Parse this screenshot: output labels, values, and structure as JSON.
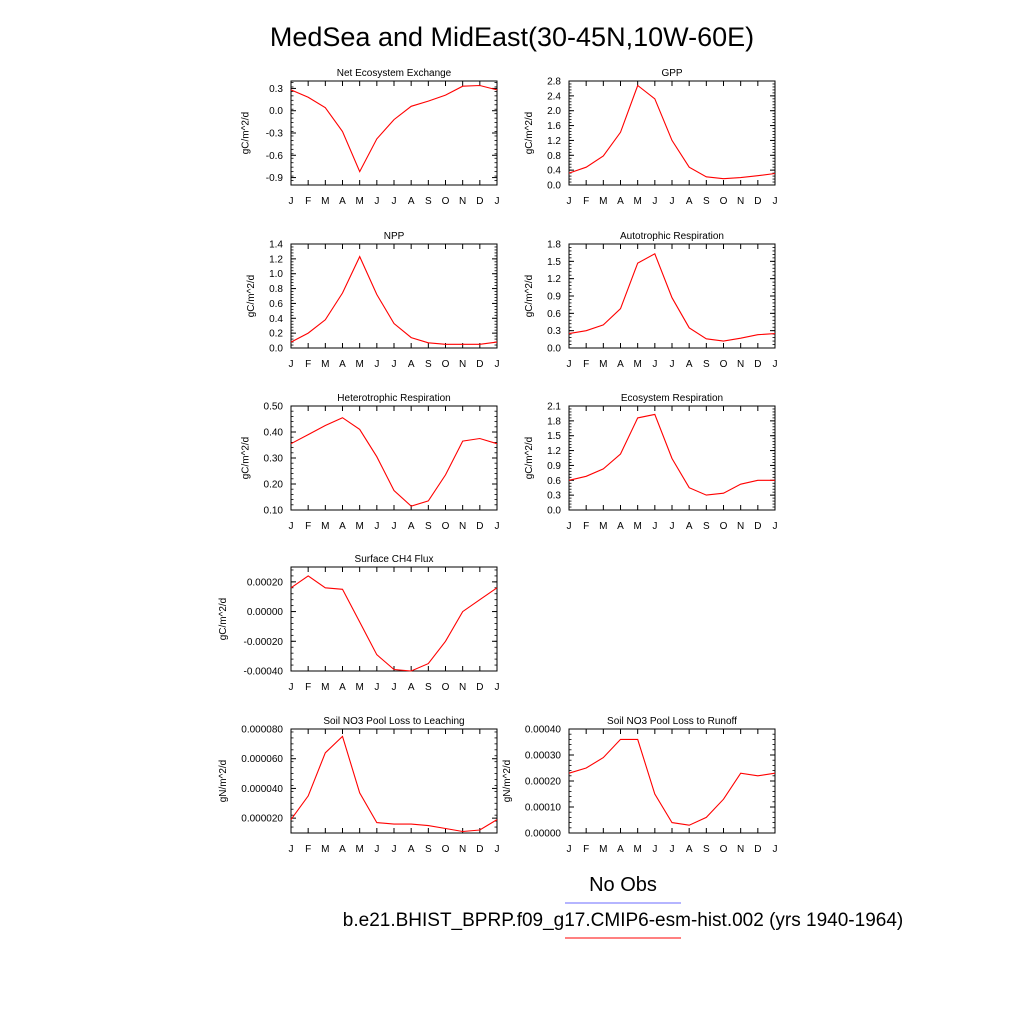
{
  "title": "MedSea and MidEast(30-45N,10W-60E)",
  "months": [
    "J",
    "F",
    "M",
    "A",
    "M",
    "J",
    "J",
    "A",
    "S",
    "O",
    "N",
    "D",
    "J"
  ],
  "colors": {
    "model": "#ff0000",
    "obs": "#6b6bff",
    "axis": "#000000"
  },
  "legend": {
    "obs_label": "No Obs",
    "model_label": "b.e21.BHIST_BPRP.f09_g17.CMIP6-esm-hist.002 (yrs 1940-1964)"
  },
  "chart_data": [
    {
      "id": "nee",
      "type": "line",
      "title": "Net Ecosystem Exchange",
      "ylabel": "gC/m^2/d",
      "ylim": [
        -1.0,
        0.4
      ],
      "yticks": [
        -0.9,
        -0.6,
        -0.3,
        0.0,
        0.3
      ],
      "ytick_labels": [
        "-0.9",
        "-0.6",
        "-0.3",
        "0.0",
        "0.3"
      ],
      "values": [
        0.28,
        0.18,
        0.04,
        -0.28,
        -0.82,
        -0.38,
        -0.12,
        0.06,
        0.13,
        0.21,
        0.33,
        0.34,
        0.28
      ]
    },
    {
      "id": "gpp",
      "type": "line",
      "title": "GPP",
      "ylabel": "gC/m^2/d",
      "ylim": [
        0.0,
        2.8
      ],
      "yticks": [
        0.0,
        0.4,
        0.8,
        1.2,
        1.6,
        2.0,
        2.4,
        2.8
      ],
      "ytick_labels": [
        "0.0",
        "0.4",
        "0.8",
        "1.2",
        "1.6",
        "2.0",
        "2.4",
        "2.8"
      ],
      "values": [
        0.32,
        0.48,
        0.78,
        1.42,
        2.68,
        2.32,
        1.2,
        0.48,
        0.22,
        0.17,
        0.2,
        0.25,
        0.31
      ]
    },
    {
      "id": "npp",
      "type": "line",
      "title": "NPP",
      "ylabel": "gC/m^2/d",
      "ylim": [
        0.0,
        1.4
      ],
      "yticks": [
        0.0,
        0.2,
        0.4,
        0.6,
        0.8,
        1.0,
        1.2,
        1.4
      ],
      "ytick_labels": [
        "0.0",
        "0.2",
        "0.4",
        "0.6",
        "0.8",
        "1.0",
        "1.2",
        "1.4"
      ],
      "values": [
        0.08,
        0.2,
        0.38,
        0.74,
        1.23,
        0.72,
        0.33,
        0.14,
        0.07,
        0.05,
        0.05,
        0.05,
        0.08
      ]
    },
    {
      "id": "ar",
      "type": "line",
      "title": "Autotrophic Respiration",
      "ylabel": "gC/m^2/d",
      "ylim": [
        0.0,
        1.8
      ],
      "yticks": [
        0.0,
        0.3,
        0.6,
        0.9,
        1.2,
        1.5,
        1.8
      ],
      "ytick_labels": [
        "0.0",
        "0.3",
        "0.6",
        "0.9",
        "1.2",
        "1.5",
        "1.8"
      ],
      "values": [
        0.25,
        0.3,
        0.4,
        0.68,
        1.47,
        1.63,
        0.87,
        0.35,
        0.16,
        0.12,
        0.17,
        0.23,
        0.25
      ]
    },
    {
      "id": "hr",
      "type": "line",
      "title": "Heterotrophic Respiration",
      "ylabel": "gC/m^2/d",
      "ylim": [
        0.1,
        0.5
      ],
      "yticks": [
        0.1,
        0.2,
        0.3,
        0.4,
        0.5
      ],
      "ytick_labels": [
        "0.10",
        "0.20",
        "0.30",
        "0.40",
        "0.50"
      ],
      "values": [
        0.355,
        0.39,
        0.425,
        0.455,
        0.41,
        0.305,
        0.175,
        0.115,
        0.135,
        0.235,
        0.365,
        0.375,
        0.355
      ]
    },
    {
      "id": "er",
      "type": "line",
      "title": "Ecosystem Respiration",
      "ylabel": "gC/m^2/d",
      "ylim": [
        0.0,
        2.1
      ],
      "yticks": [
        0.0,
        0.3,
        0.6,
        0.9,
        1.2,
        1.5,
        1.8,
        2.1
      ],
      "ytick_labels": [
        "0.0",
        "0.3",
        "0.6",
        "0.9",
        "1.2",
        "1.5",
        "1.8",
        "2.1"
      ],
      "values": [
        0.6,
        0.68,
        0.83,
        1.13,
        1.86,
        1.93,
        1.04,
        0.45,
        0.3,
        0.34,
        0.52,
        0.6,
        0.6
      ]
    },
    {
      "id": "ch4",
      "type": "line",
      "title": "Surface CH4 Flux",
      "ylabel": "gC/m^2/d",
      "ylim": [
        -0.0004,
        0.0003
      ],
      "yticks": [
        -0.0004,
        -0.0002,
        0.0,
        0.0002
      ],
      "ytick_labels": [
        "-0.00040",
        "-0.00020",
        "0.00000",
        "0.00020"
      ],
      "values": [
        0.00016,
        0.00024,
        0.00016,
        0.00015,
        -7e-05,
        -0.00029,
        -0.00039,
        -0.0004,
        -0.00035,
        -0.0002,
        0.0,
        8e-05,
        0.00016
      ]
    },
    {
      "id": "leach",
      "type": "line",
      "title": "Soil NO3 Pool Loss to Leaching",
      "ylabel": "gN/m^2/d",
      "ylim": [
        1e-05,
        8e-05
      ],
      "yticks": [
        2e-05,
        4e-05,
        6e-05,
        8e-05
      ],
      "ytick_labels": [
        "0.000020",
        "0.000040",
        "0.000060",
        "0.000080"
      ],
      "values": [
        1.9e-05,
        3.5e-05,
        6.4e-05,
        7.5e-05,
        3.7e-05,
        1.7e-05,
        1.6e-05,
        1.6e-05,
        1.5e-05,
        1.3e-05,
        1.1e-05,
        1.2e-05,
        1.9e-05
      ]
    },
    {
      "id": "runoff",
      "type": "line",
      "title": "Soil NO3 Pool Loss to Runoff",
      "ylabel": "gN/m^2/d",
      "ylim": [
        0.0,
        0.0004
      ],
      "yticks": [
        0.0,
        0.0001,
        0.0002,
        0.0003,
        0.0004
      ],
      "ytick_labels": [
        "0.00000",
        "0.00010",
        "0.00020",
        "0.00030",
        "0.00040"
      ],
      "values": [
        0.00023,
        0.00025,
        0.00029,
        0.00036,
        0.00036,
        0.00015,
        4e-05,
        3e-05,
        6e-05,
        0.00013,
        0.00023,
        0.00022,
        0.00023
      ]
    }
  ]
}
